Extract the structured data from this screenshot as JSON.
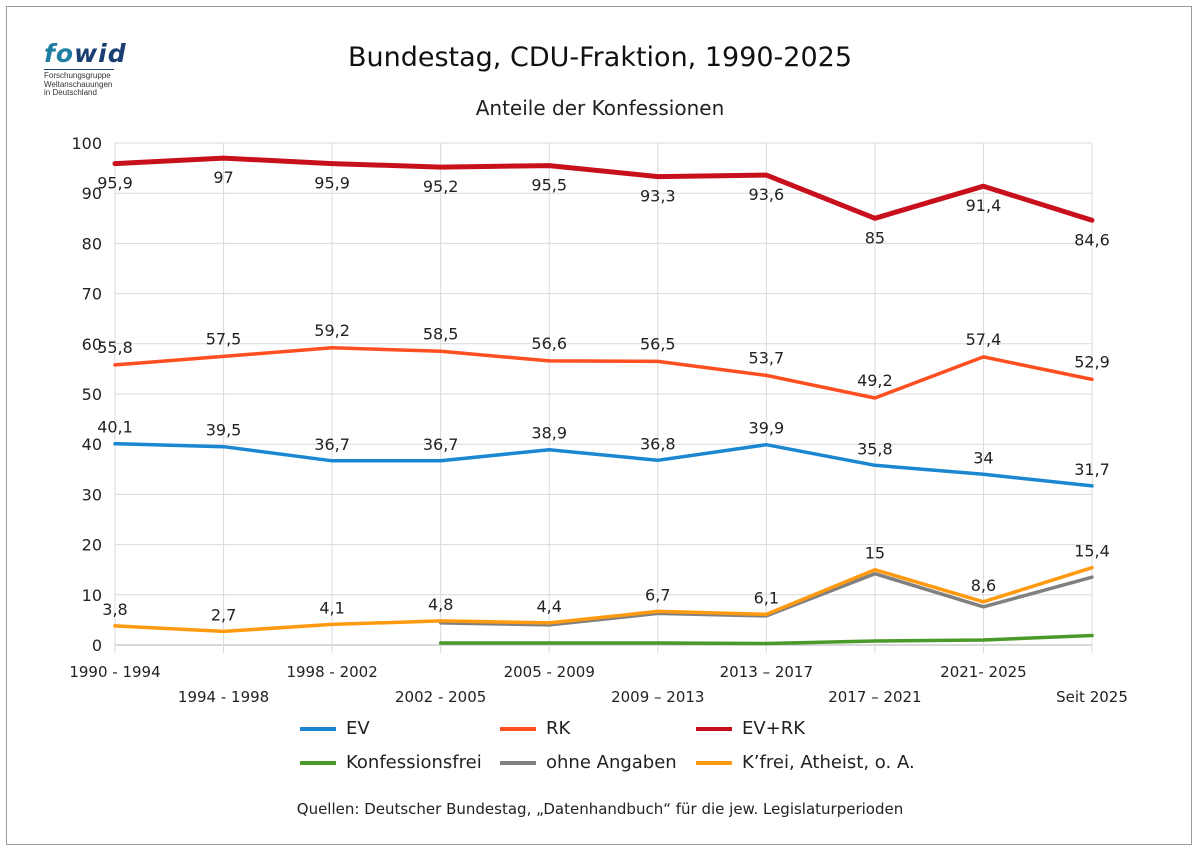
{
  "logo": {
    "word_fo": "fo",
    "word_wid": "wid",
    "lines": [
      "Forschungsgruppe",
      "Weltanschauungen",
      "in Deutschland"
    ]
  },
  "source": "Quellen: Deutscher Bundestag, „Datenhandbuch“ für die jew. Legislaturperioden",
  "chart_data": {
    "type": "line",
    "title": "Bundestag, CDU-Fraktion, 1990-2025",
    "subtitle": "Anteile der Konfessionen",
    "categories": [
      "1990 - 1994",
      "1994 - 1998",
      "1998 - 2002",
      "2002 - 2005",
      "2005 - 2009",
      "2009 – 2013",
      "2013 – 2017",
      "2017 – 2021",
      "2021- 2025",
      "Seit 2025"
    ],
    "ylim": [
      0,
      100
    ],
    "yticks": [
      0,
      10,
      20,
      30,
      40,
      50,
      60,
      70,
      80,
      90,
      100
    ],
    "grid": true,
    "legend_position": "bottom",
    "series": [
      {
        "name": "EV",
        "color": "#1a87d0",
        "values": [
          40.1,
          39.5,
          36.7,
          36.7,
          38.9,
          36.8,
          39.9,
          35.8,
          34,
          31.7
        ],
        "labels": [
          "40,1",
          "39,5",
          "36,7",
          "36,7",
          "38,9",
          "36,8",
          "39,9",
          "35,8",
          "34",
          "31,7"
        ]
      },
      {
        "name": "RK",
        "color": "#ff4e1f",
        "values": [
          55.8,
          57.5,
          59.2,
          58.5,
          56.6,
          56.5,
          53.7,
          49.2,
          57.4,
          52.9
        ],
        "labels": [
          "55,8",
          "57,5",
          "59,2",
          "58,5",
          "56,6",
          "56,5",
          "53,7",
          "49,2",
          "57,4",
          "52,9"
        ]
      },
      {
        "name": "EV+RK",
        "color": "#c8101c",
        "values": [
          95.9,
          97,
          95.9,
          95.2,
          95.5,
          93.3,
          93.6,
          85,
          91.4,
          84.6
        ],
        "labels": [
          "95,9",
          "97",
          "95,9",
          "95,2",
          "95,5",
          "93,3",
          "93,6",
          "85",
          "91,4",
          "84,6"
        ]
      },
      {
        "name": "Konfessionsfrei",
        "color": "#4a9a2a",
        "values": [
          null,
          null,
          null,
          0.4,
          0.4,
          0.4,
          0.3,
          0.8,
          1.0,
          1.9
        ],
        "labels": []
      },
      {
        "name": "ohne Angaben",
        "color": "#808080",
        "values": [
          null,
          null,
          null,
          4.4,
          4.0,
          6.3,
          5.8,
          14.2,
          7.6,
          13.5
        ],
        "labels": []
      },
      {
        "name": "K’frei, Atheist, o. A.",
        "color": "#ff9a10",
        "values": [
          3.8,
          2.7,
          4.1,
          4.8,
          4.4,
          6.7,
          6.1,
          15,
          8.6,
          15.4
        ],
        "labels": [
          "3,8",
          "2,7",
          "4,1",
          "4,8",
          "4,4",
          "6,7",
          "6,1",
          "15",
          "8,6",
          "15,4"
        ]
      }
    ]
  }
}
